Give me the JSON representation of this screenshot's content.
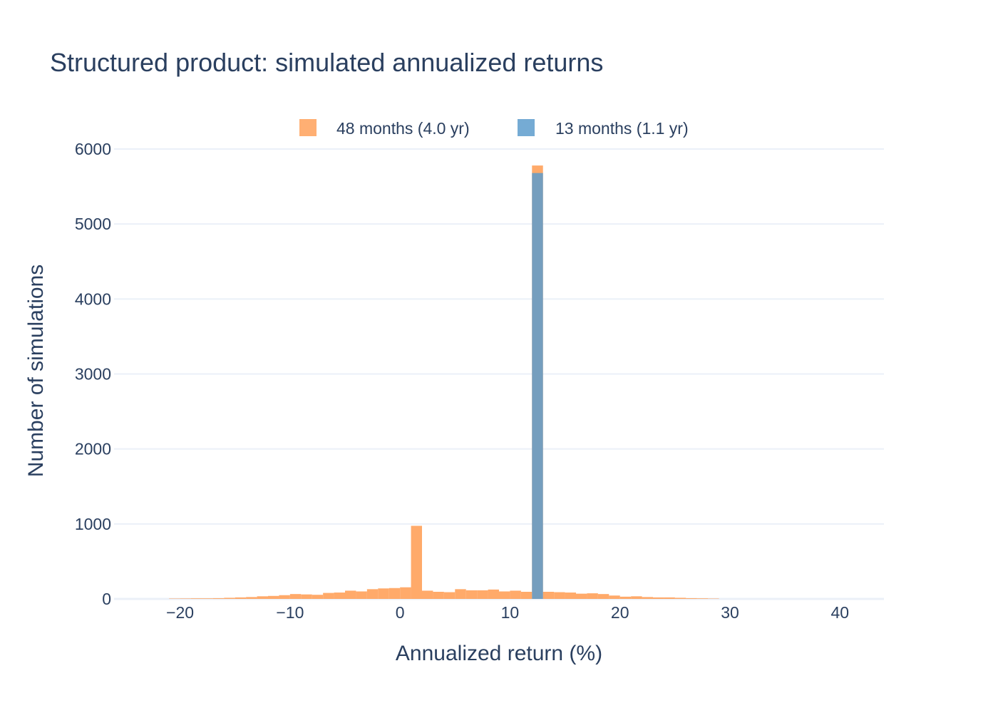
{
  "chart_data": {
    "type": "bar",
    "title": "Structured product: simulated annualized returns",
    "xlabel": "Annualized return (%)",
    "ylabel": "Number of simulations",
    "xlim": [
      -26,
      44
    ],
    "ylim": [
      0,
      6000
    ],
    "x_ticks": [
      -20,
      -10,
      0,
      10,
      20,
      30,
      40
    ],
    "x_tick_labels": [
      "−20",
      "−10",
      "0",
      "10",
      "20",
      "30",
      "40"
    ],
    "y_ticks": [
      0,
      1000,
      2000,
      3000,
      4000,
      5000,
      6000
    ],
    "y_tick_labels": [
      "0",
      "1000",
      "2000",
      "3000",
      "4000",
      "5000",
      "6000"
    ],
    "grid": true,
    "legend_position": "top-center",
    "barmode": "overlay",
    "series": [
      {
        "name": "48 months (4.0 yr)",
        "color": "#ffa15a",
        "bin_width": 1,
        "bin_start": [
          -21,
          -20,
          -19,
          -18,
          -17,
          -16,
          -15,
          -14,
          -13,
          -12,
          -11,
          -10,
          -9,
          -8,
          -7,
          -6,
          -5,
          -4,
          -3,
          -2,
          -1,
          0,
          1,
          2,
          3,
          4,
          5,
          6,
          7,
          8,
          9,
          10,
          11,
          12,
          13,
          14,
          15,
          16,
          17,
          18,
          19,
          20,
          21,
          22,
          23,
          24,
          25,
          26,
          27,
          28
        ],
        "values": [
          5,
          6,
          8,
          8,
          10,
          15,
          20,
          25,
          35,
          40,
          50,
          65,
          60,
          55,
          80,
          85,
          110,
          100,
          130,
          140,
          145,
          155,
          975,
          110,
          95,
          90,
          130,
          115,
          115,
          125,
          100,
          110,
          95,
          5780,
          95,
          90,
          85,
          70,
          75,
          65,
          45,
          30,
          35,
          25,
          20,
          20,
          15,
          10,
          8,
          5
        ]
      },
      {
        "name": "13 months (1.1 yr)",
        "color": "#5d9ccc",
        "bin_width": 1,
        "bin_start": [
          12
        ],
        "values": [
          5680
        ]
      }
    ]
  }
}
